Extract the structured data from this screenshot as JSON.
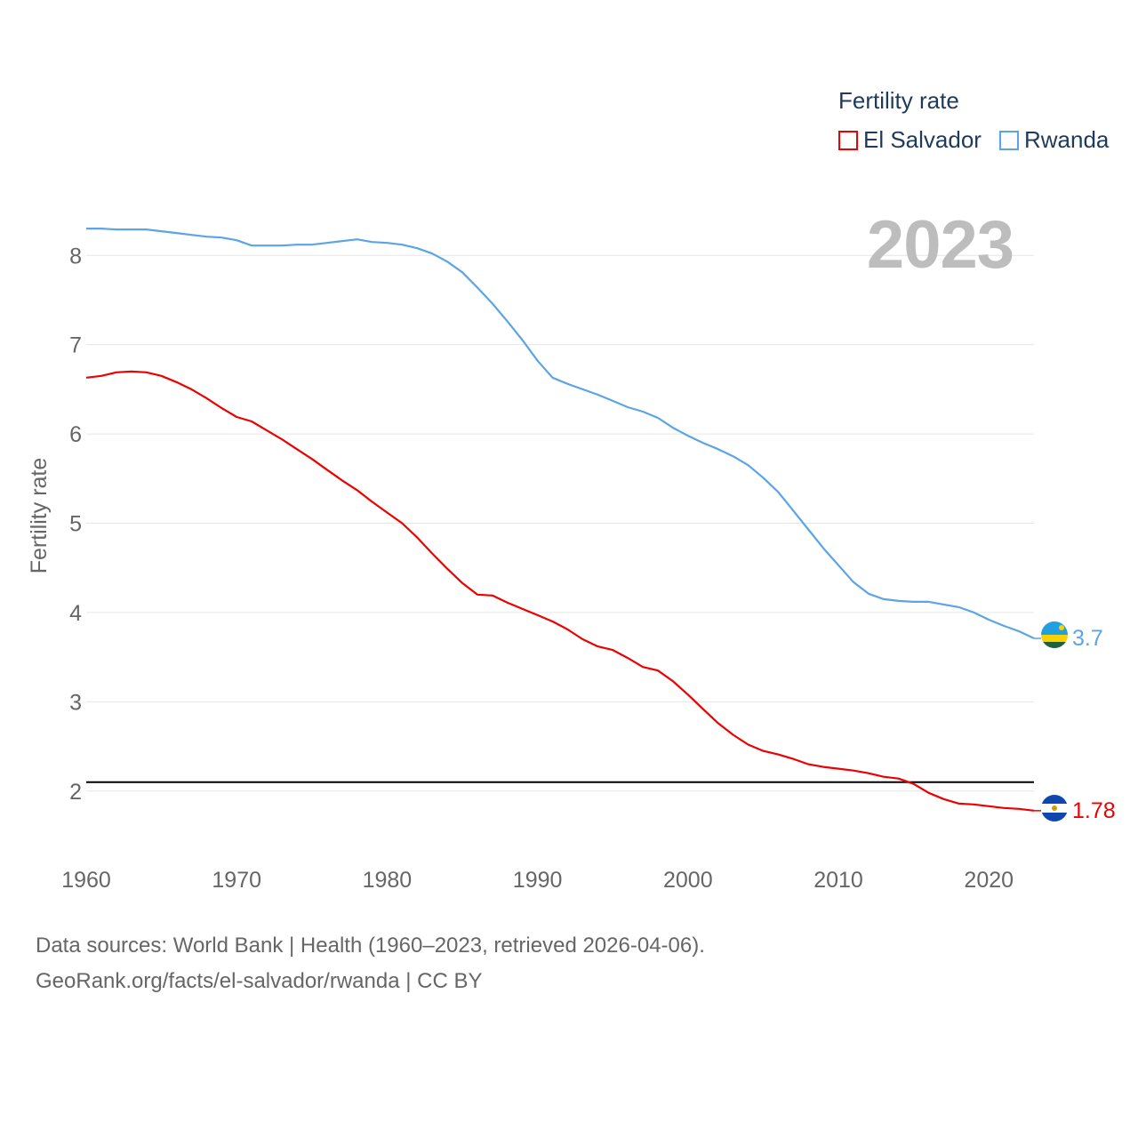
{
  "legend": {
    "title": "Fertility rate",
    "items": [
      {
        "label": "El Salvador",
        "color": "#ee0000"
      },
      {
        "label": "Rwanda",
        "color": "#5ba4e6"
      }
    ]
  },
  "year_display": "2023",
  "footer": {
    "line1": "Data sources: World Bank | Health (1960–2023, retrieved 2026-04-06).",
    "line2": "GeoRank.org/facts/el-salvador/rwanda | CC BY"
  },
  "chart_data": {
    "type": "line",
    "ylabel": "Fertility rate",
    "xlabel": "",
    "xlim": [
      1960,
      2023
    ],
    "ylim": [
      1.4,
      8.6
    ],
    "xticks": [
      1960,
      1970,
      1980,
      1990,
      2000,
      2010,
      2020
    ],
    "yticks": [
      2,
      3,
      4,
      5,
      6,
      7,
      8
    ],
    "reference_line": {
      "y": 2.1
    },
    "series": [
      {
        "name": "El Salvador",
        "color": "#ee0000",
        "end_label": "1.78",
        "x": [
          1960,
          1961,
          1962,
          1963,
          1964,
          1965,
          1966,
          1967,
          1968,
          1969,
          1970,
          1971,
          1972,
          1973,
          1974,
          1975,
          1976,
          1977,
          1978,
          1979,
          1980,
          1981,
          1982,
          1983,
          1984,
          1985,
          1986,
          1987,
          1988,
          1989,
          1990,
          1991,
          1992,
          1993,
          1994,
          1995,
          1996,
          1997,
          1998,
          1999,
          2000,
          2001,
          2002,
          2003,
          2004,
          2005,
          2006,
          2007,
          2008,
          2009,
          2010,
          2011,
          2012,
          2013,
          2014,
          2015,
          2016,
          2017,
          2018,
          2019,
          2020,
          2021,
          2022,
          2023
        ],
        "values": [
          6.63,
          6.65,
          6.69,
          6.7,
          6.69,
          6.65,
          6.58,
          6.5,
          6.4,
          6.29,
          6.19,
          6.14,
          6.04,
          5.94,
          5.83,
          5.72,
          5.6,
          5.48,
          5.37,
          5.24,
          5.12,
          5.0,
          4.84,
          4.66,
          4.49,
          4.33,
          4.2,
          4.19,
          4.11,
          4.04,
          3.97,
          3.9,
          3.81,
          3.7,
          3.62,
          3.58,
          3.49,
          3.39,
          3.35,
          3.23,
          3.08,
          2.92,
          2.76,
          2.63,
          2.52,
          2.45,
          2.41,
          2.36,
          2.3,
          2.27,
          2.25,
          2.23,
          2.2,
          2.16,
          2.14,
          2.08,
          1.98,
          1.91,
          1.86,
          1.85,
          1.83,
          1.81,
          1.8,
          1.78
        ]
      },
      {
        "name": "Rwanda",
        "color": "#5ba4e6",
        "end_label": "3.7",
        "x": [
          1960,
          1961,
          1962,
          1963,
          1964,
          1965,
          1966,
          1967,
          1968,
          1969,
          1970,
          1971,
          1972,
          1973,
          1974,
          1975,
          1976,
          1977,
          1978,
          1979,
          1980,
          1981,
          1982,
          1983,
          1984,
          1985,
          1986,
          1987,
          1988,
          1989,
          1990,
          1991,
          1992,
          1993,
          1994,
          1995,
          1996,
          1997,
          1998,
          1999,
          2000,
          2001,
          2002,
          2003,
          2004,
          2005,
          2006,
          2007,
          2008,
          2009,
          2010,
          2011,
          2012,
          2013,
          2014,
          2015,
          2016,
          2017,
          2018,
          2019,
          2020,
          2021,
          2022,
          2023
        ],
        "values": [
          8.3,
          8.3,
          8.29,
          8.29,
          8.29,
          8.27,
          8.25,
          8.23,
          8.21,
          8.2,
          8.17,
          8.11,
          8.11,
          8.11,
          8.12,
          8.12,
          8.14,
          8.16,
          8.18,
          8.15,
          8.14,
          8.12,
          8.08,
          8.02,
          7.93,
          7.81,
          7.64,
          7.46,
          7.26,
          7.05,
          6.82,
          6.63,
          6.56,
          6.5,
          6.44,
          6.37,
          6.3,
          6.25,
          6.18,
          6.07,
          5.98,
          5.9,
          5.83,
          5.75,
          5.65,
          5.51,
          5.35,
          5.14,
          4.93,
          4.72,
          4.53,
          4.34,
          4.21,
          4.15,
          4.13,
          4.12,
          4.12,
          4.09,
          4.06,
          4.0,
          3.92,
          3.85,
          3.79,
          3.71
        ]
      }
    ]
  }
}
